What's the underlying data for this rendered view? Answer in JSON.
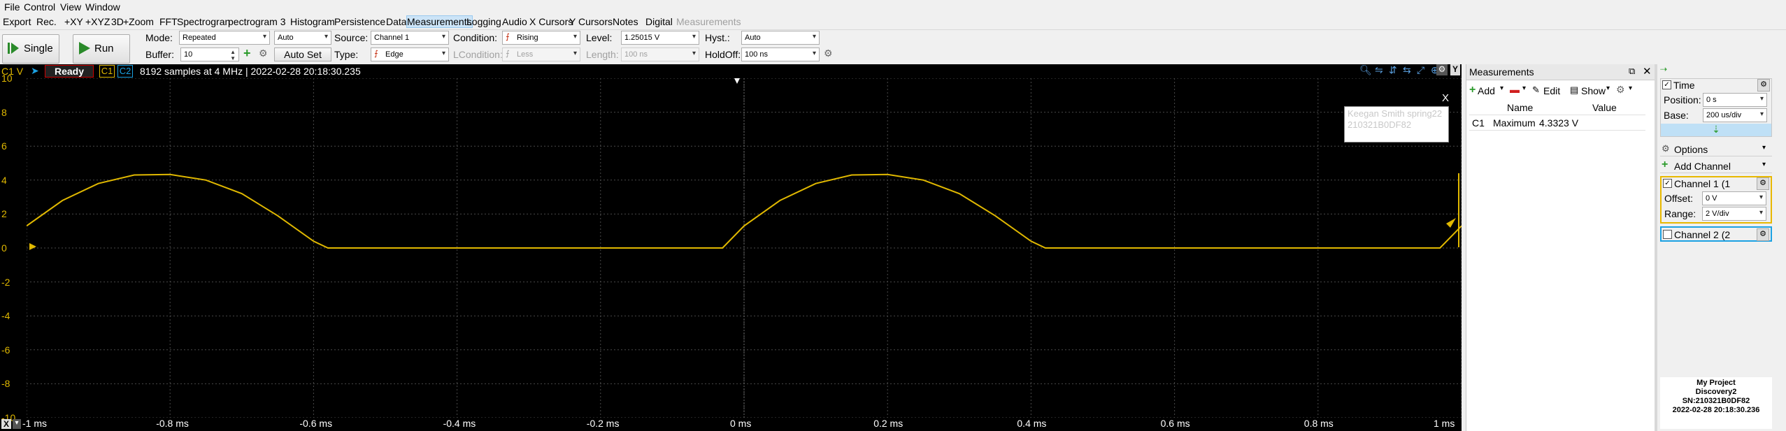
{
  "menu": [
    "File",
    "Control",
    "View",
    "Window"
  ],
  "views": [
    "Export",
    "Rec.",
    "+XY",
    "+XYZ",
    "3D",
    "+Zoom",
    "FFT",
    "Spectrogram",
    "Spectrogram 3D",
    "Histogram",
    "Persistence",
    "Data",
    "Measurements",
    "Logging",
    "Audio",
    "X Cursors",
    "Y Cursors",
    "Notes",
    "Digital",
    "Measurements"
  ],
  "views_display": [
    "Export",
    "Rec.",
    "+XY",
    "+XYZ",
    "3D",
    "+Zoom",
    "FFT",
    "Spectrogran",
    "pectrogram 3",
    "Histogram",
    "Persistence",
    "Data",
    "Measurements",
    "Logging",
    "Audio",
    "X Cursors",
    "Y Cursors",
    "Notes",
    "Digital",
    "Measurements"
  ],
  "toolbar": {
    "single": "Single",
    "run": "Run",
    "mode_label": "Mode:",
    "mode_value": "Repeated",
    "auto_value": "Auto",
    "source_label": "Source:",
    "source_value": "Channel 1",
    "condition_label": "Condition:",
    "condition_value": "Rising",
    "level_label": "Level:",
    "level_value": "1.25015 V",
    "hyst_label": "Hyst.:",
    "hyst_value": "Auto",
    "buffer_label": "Buffer:",
    "buffer_value": "10",
    "autoset": "Auto Set",
    "type_label": "Type:",
    "type_value": "Edge",
    "lcondition_label": "LCondition:",
    "lcondition_value": "Less",
    "length_label": "Length:",
    "length_value": "100 ns",
    "holdoff_label": "HoldOff:",
    "holdoff_value": "100 ns"
  },
  "scope": {
    "channel_unit": "C1 V",
    "status": "Ready",
    "c1": "C1",
    "c2": "C2",
    "info": "8192 samples at 4 MHz | 2022-02-28 20:18:30.235",
    "y_ticks": [
      "10",
      "8",
      "6",
      "4",
      "2",
      "0",
      "-2",
      "-4",
      "-6",
      "-8",
      "-10"
    ],
    "x_ticks": [
      "-1 ms",
      "-0.8 ms",
      "-0.6 ms",
      "-0.4 ms",
      "-0.2 ms",
      "0 ms",
      "0.2 ms",
      "0.4 ms",
      "0.6 ms",
      "0.8 ms",
      "1 ms"
    ],
    "note_line1": "Keegan Smith spring22",
    "note_line2": "210321B0DF82",
    "note_close": "X",
    "trace_color": "#e0b800",
    "y_toggle": "Y"
  },
  "chart_data": {
    "type": "line",
    "xlabel": "",
    "ylabel": "C1 V",
    "xlim": [
      -1,
      1
    ],
    "ylim": [
      -10,
      10
    ],
    "x_unit": "ms",
    "series": [
      {
        "name": "C1",
        "x": [
          -1.0,
          -0.95,
          -0.9,
          -0.85,
          -0.8,
          -0.75,
          -0.7,
          -0.65,
          -0.6,
          -0.58,
          -0.5,
          -0.4,
          -0.3,
          -0.2,
          -0.1,
          -0.05,
          -0.03,
          0.0,
          0.05,
          0.1,
          0.15,
          0.2,
          0.25,
          0.3,
          0.35,
          0.4,
          0.42,
          0.5,
          0.6,
          0.7,
          0.8,
          0.9,
          0.95,
          0.97,
          1.0
        ],
        "y": [
          1.3,
          2.8,
          3.8,
          4.3,
          4.33,
          4.0,
          3.2,
          1.9,
          0.4,
          0.0,
          0.0,
          0.0,
          0.0,
          0.0,
          0.0,
          0.0,
          0.0,
          1.3,
          2.8,
          3.8,
          4.3,
          4.33,
          4.0,
          3.2,
          1.9,
          0.4,
          0.0,
          0.0,
          0.0,
          0.0,
          0.0,
          0.0,
          0.0,
          0.0,
          1.3
        ]
      }
    ]
  },
  "measurements": {
    "title": "Measurements",
    "add": "Add",
    "edit": "Edit",
    "show": "Show",
    "col_name": "Name",
    "col_value": "Value",
    "rows": [
      {
        "channel": "C1",
        "name": "Maximum",
        "value": "4.3323 V"
      }
    ]
  },
  "rpanel": {
    "time_title": "Time",
    "position_label": "Position:",
    "position_value": "0 s",
    "base_label": "Base:",
    "base_value": "200 us/div",
    "options": "Options",
    "add_channel": "Add Channel",
    "ch1_title": "Channel 1 (1",
    "offset_label": "Offset:",
    "offset_value": "0 V",
    "range_label": "Range:",
    "range_value": "2 V/div",
    "ch2_title": "Channel 2 (2",
    "device_line1": "My Project",
    "device_line2": "Discovery2",
    "device_line3": "SN:210321B0DF82",
    "device_line4": "2022-02-28 20:18:30.236",
    "ch1_color": "#e8b800",
    "ch2_color": "#1ba1e2"
  }
}
